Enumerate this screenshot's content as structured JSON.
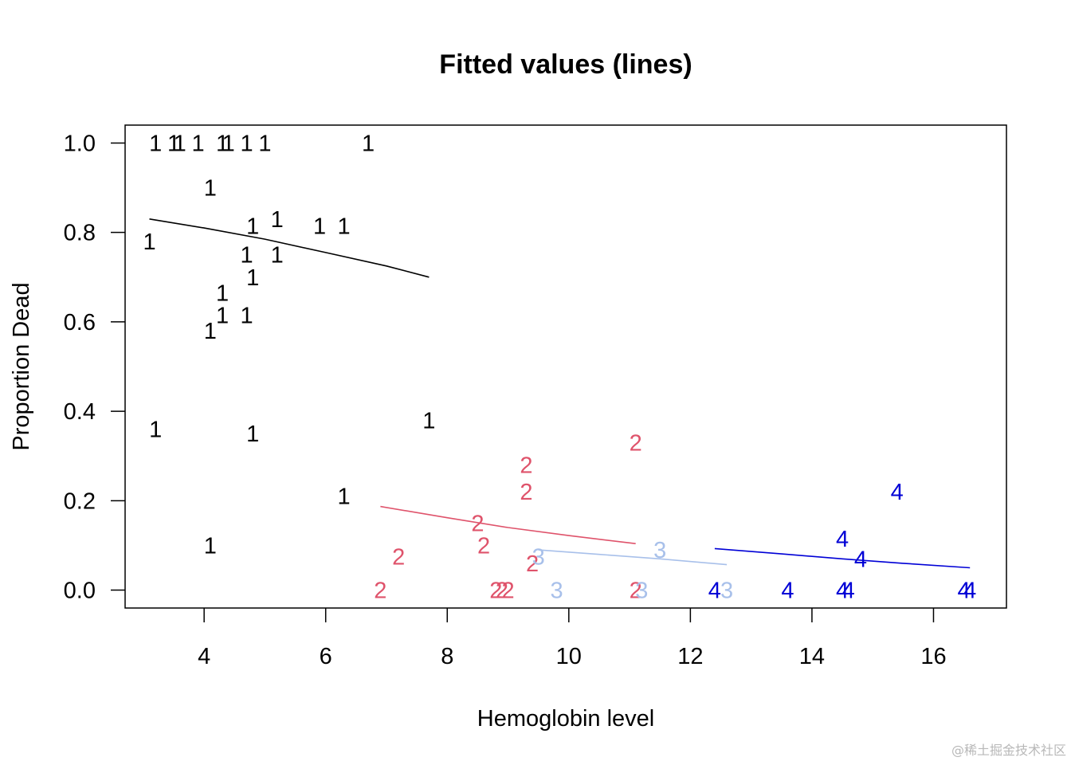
{
  "chart_data": {
    "type": "scatter",
    "title": "Fitted values (lines)",
    "xlabel": "Hemoglobin level",
    "ylabel": "Proportion Dead",
    "xlim": [
      2.7,
      17.2
    ],
    "ylim": [
      -0.04,
      1.04
    ],
    "xticks": [
      4,
      6,
      8,
      10,
      12,
      14,
      16
    ],
    "yticks": [
      0.0,
      0.2,
      0.4,
      0.6,
      0.8,
      1.0
    ],
    "xtick_labels": [
      "4",
      "6",
      "8",
      "10",
      "12",
      "14",
      "16"
    ],
    "ytick_labels": [
      "0.0",
      "0.2",
      "0.4",
      "0.6",
      "0.8",
      "1.0"
    ],
    "series": [
      {
        "name": "1",
        "color": "#000000",
        "points": [
          {
            "x": 3.2,
            "y": 1.0
          },
          {
            "x": 3.5,
            "y": 1.0
          },
          {
            "x": 3.6,
            "y": 1.0
          },
          {
            "x": 3.9,
            "y": 1.0
          },
          {
            "x": 4.3,
            "y": 1.0
          },
          {
            "x": 4.4,
            "y": 1.0
          },
          {
            "x": 4.7,
            "y": 1.0
          },
          {
            "x": 5.0,
            "y": 1.0
          },
          {
            "x": 6.7,
            "y": 1.0
          },
          {
            "x": 4.1,
            "y": 0.9
          },
          {
            "x": 3.1,
            "y": 0.78
          },
          {
            "x": 4.8,
            "y": 0.815
          },
          {
            "x": 5.2,
            "y": 0.83
          },
          {
            "x": 5.9,
            "y": 0.815
          },
          {
            "x": 6.3,
            "y": 0.815
          },
          {
            "x": 4.7,
            "y": 0.75
          },
          {
            "x": 5.2,
            "y": 0.75
          },
          {
            "x": 4.8,
            "y": 0.7
          },
          {
            "x": 4.3,
            "y": 0.665
          },
          {
            "x": 4.3,
            "y": 0.615
          },
          {
            "x": 4.7,
            "y": 0.615
          },
          {
            "x": 4.1,
            "y": 0.58
          },
          {
            "x": 3.2,
            "y": 0.36
          },
          {
            "x": 4.8,
            "y": 0.35
          },
          {
            "x": 7.7,
            "y": 0.38
          },
          {
            "x": 6.3,
            "y": 0.21
          },
          {
            "x": 4.1,
            "y": 0.1
          }
        ],
        "fitted": [
          {
            "x": 3.1,
            "y": 0.83
          },
          {
            "x": 4.0,
            "y": 0.81
          },
          {
            "x": 5.0,
            "y": 0.785
          },
          {
            "x": 6.0,
            "y": 0.755
          },
          {
            "x": 7.0,
            "y": 0.725
          },
          {
            "x": 7.7,
            "y": 0.7
          }
        ]
      },
      {
        "name": "2",
        "color": "#df536b",
        "points": [
          {
            "x": 11.1,
            "y": 0.33
          },
          {
            "x": 9.3,
            "y": 0.28
          },
          {
            "x": 9.3,
            "y": 0.22
          },
          {
            "x": 8.5,
            "y": 0.15
          },
          {
            "x": 8.6,
            "y": 0.1
          },
          {
            "x": 7.2,
            "y": 0.075
          },
          {
            "x": 9.4,
            "y": 0.06
          },
          {
            "x": 6.9,
            "y": 0.0
          },
          {
            "x": 8.8,
            "y": 0.0
          },
          {
            "x": 8.9,
            "y": 0.0
          },
          {
            "x": 9.0,
            "y": 0.0
          },
          {
            "x": 11.1,
            "y": 0.0
          }
        ],
        "fitted": [
          {
            "x": 6.9,
            "y": 0.187
          },
          {
            "x": 8.0,
            "y": 0.162
          },
          {
            "x": 9.0,
            "y": 0.14
          },
          {
            "x": 10.0,
            "y": 0.122
          },
          {
            "x": 11.1,
            "y": 0.104
          }
        ]
      },
      {
        "name": "3",
        "color": "#a8c0ea",
        "points": [
          {
            "x": 11.5,
            "y": 0.09
          },
          {
            "x": 9.5,
            "y": 0.075
          },
          {
            "x": 9.8,
            "y": 0.0
          },
          {
            "x": 11.2,
            "y": 0.0
          },
          {
            "x": 12.6,
            "y": 0.0
          }
        ],
        "fitted": [
          {
            "x": 9.5,
            "y": 0.09
          },
          {
            "x": 10.5,
            "y": 0.08
          },
          {
            "x": 11.5,
            "y": 0.07
          },
          {
            "x": 12.6,
            "y": 0.057
          }
        ]
      },
      {
        "name": "4",
        "color": "#0000d6",
        "points": [
          {
            "x": 15.4,
            "y": 0.22
          },
          {
            "x": 14.5,
            "y": 0.115
          },
          {
            "x": 14.8,
            "y": 0.07
          },
          {
            "x": 12.4,
            "y": 0.0
          },
          {
            "x": 13.6,
            "y": 0.0
          },
          {
            "x": 14.5,
            "y": 0.0
          },
          {
            "x": 14.6,
            "y": 0.0
          },
          {
            "x": 16.5,
            "y": 0.0
          },
          {
            "x": 16.6,
            "y": 0.0
          }
        ],
        "fitted": [
          {
            "x": 12.4,
            "y": 0.093
          },
          {
            "x": 13.5,
            "y": 0.081
          },
          {
            "x": 14.5,
            "y": 0.07
          },
          {
            "x": 15.5,
            "y": 0.06
          },
          {
            "x": 16.6,
            "y": 0.05
          }
        ]
      }
    ]
  },
  "watermark": "@稀土掘金技术社区"
}
